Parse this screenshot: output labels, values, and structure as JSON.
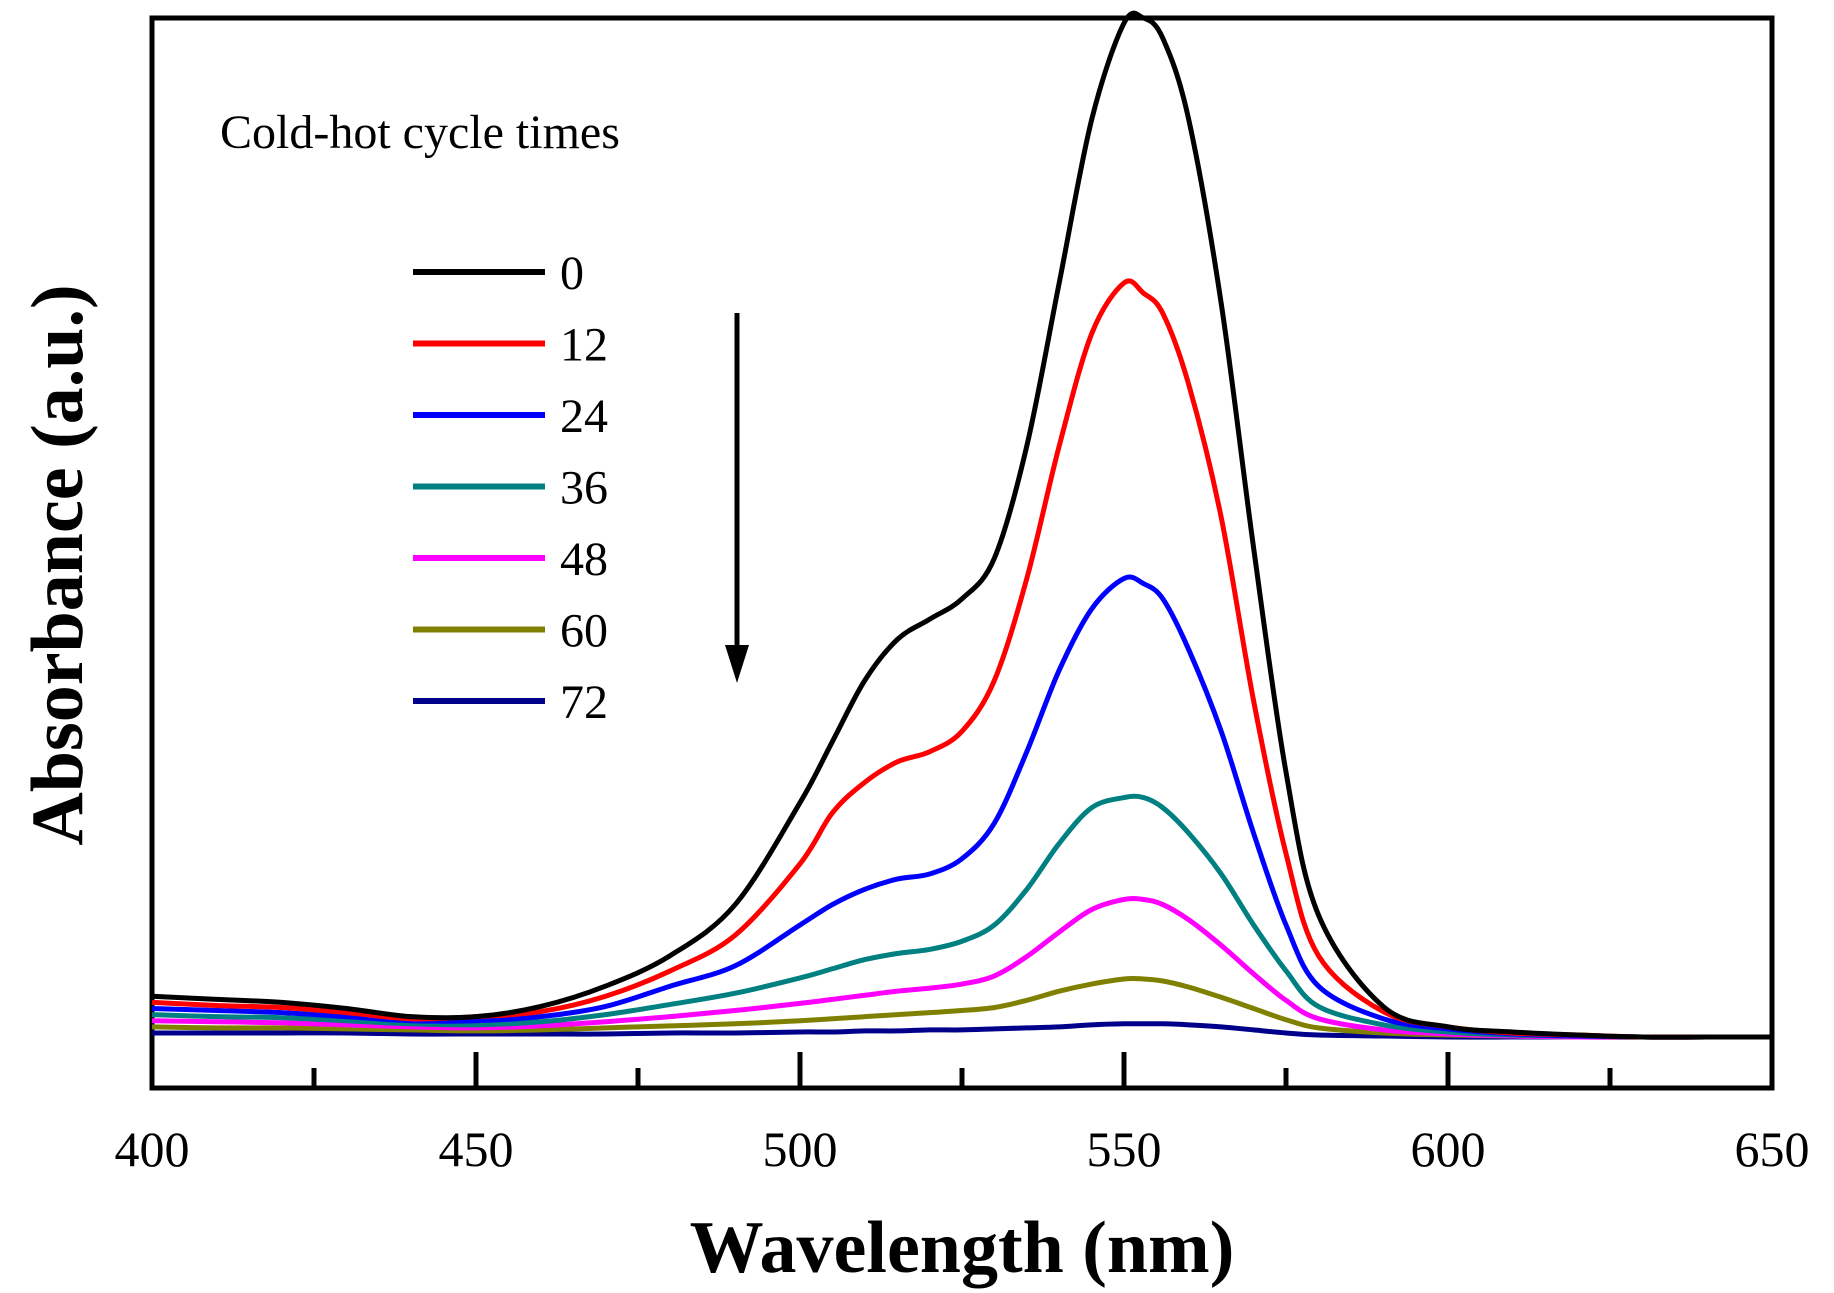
{
  "chart_data": {
    "type": "line",
    "xlabel": "Wavelength (nm)",
    "ylabel": "Absorbance (a.u.)",
    "xlim": [
      400,
      650
    ],
    "ylim": [
      -0.05,
      1.0
    ],
    "x_ticks": [
      400,
      450,
      500,
      550,
      600,
      650
    ],
    "x_tick_labels": [
      "400",
      "450",
      "500",
      "550",
      "600",
      "650"
    ],
    "legend": {
      "title": "Cold-hot cycle times",
      "position": "top-left"
    },
    "annotation": "downward arrow indicating decreasing absorbance with increasing cycle times",
    "x": [
      400,
      410,
      420,
      430,
      440,
      450,
      460,
      470,
      480,
      490,
      500,
      505,
      510,
      515,
      520,
      525,
      530,
      535,
      540,
      545,
      550,
      553,
      556,
      560,
      565,
      570,
      575,
      580,
      590,
      600,
      610,
      620,
      630,
      640,
      650
    ],
    "series": [
      {
        "name": "0",
        "color": "#000000",
        "values": [
          0.04,
          0.037,
          0.034,
          0.028,
          0.02,
          0.02,
          0.03,
          0.05,
          0.08,
          0.13,
          0.23,
          0.29,
          0.35,
          0.39,
          0.41,
          0.43,
          0.47,
          0.58,
          0.74,
          0.9,
          0.995,
          1.0,
          0.98,
          0.9,
          0.72,
          0.48,
          0.26,
          0.12,
          0.03,
          0.01,
          0.005,
          0.002,
          0.0,
          0.0,
          0.0
        ]
      },
      {
        "name": "12",
        "color": "#ff0000",
        "values": [
          0.034,
          0.031,
          0.029,
          0.024,
          0.018,
          0.02,
          0.025,
          0.04,
          0.065,
          0.1,
          0.17,
          0.22,
          0.25,
          0.27,
          0.28,
          0.3,
          0.35,
          0.45,
          0.58,
          0.69,
          0.74,
          0.73,
          0.71,
          0.64,
          0.51,
          0.33,
          0.18,
          0.08,
          0.025,
          0.01,
          0.004,
          0.002,
          0.0,
          0.0,
          0.0
        ]
      },
      {
        "name": "24",
        "color": "#0000ff",
        "values": [
          0.028,
          0.026,
          0.024,
          0.02,
          0.016,
          0.016,
          0.02,
          0.03,
          0.05,
          0.07,
          0.11,
          0.13,
          0.145,
          0.155,
          0.16,
          0.175,
          0.21,
          0.28,
          0.36,
          0.42,
          0.45,
          0.445,
          0.43,
          0.38,
          0.3,
          0.2,
          0.11,
          0.05,
          0.018,
          0.008,
          0.003,
          0.001,
          0.0,
          0.0,
          0.0
        ]
      },
      {
        "name": "36",
        "color": "#008080",
        "values": [
          0.022,
          0.02,
          0.019,
          0.016,
          0.013,
          0.012,
          0.015,
          0.022,
          0.032,
          0.043,
          0.058,
          0.067,
          0.076,
          0.082,
          0.086,
          0.094,
          0.11,
          0.145,
          0.19,
          0.225,
          0.235,
          0.235,
          0.225,
          0.2,
          0.16,
          0.11,
          0.065,
          0.03,
          0.012,
          0.005,
          0.002,
          0.001,
          0.0,
          0.0,
          0.0
        ]
      },
      {
        "name": "48",
        "color": "#ff00ff",
        "values": [
          0.016,
          0.015,
          0.014,
          0.012,
          0.01,
          0.009,
          0.011,
          0.015,
          0.02,
          0.026,
          0.033,
          0.037,
          0.041,
          0.045,
          0.048,
          0.052,
          0.06,
          0.079,
          0.103,
          0.125,
          0.135,
          0.135,
          0.13,
          0.115,
          0.09,
          0.062,
          0.036,
          0.018,
          0.007,
          0.003,
          0.001,
          0.0,
          0.0,
          0.0,
          0.0
        ]
      },
      {
        "name": "60",
        "color": "#808000",
        "values": [
          0.01,
          0.009,
          0.009,
          0.008,
          0.007,
          0.006,
          0.007,
          0.009,
          0.011,
          0.013,
          0.016,
          0.018,
          0.02,
          0.022,
          0.024,
          0.026,
          0.029,
          0.036,
          0.045,
          0.052,
          0.057,
          0.057,
          0.055,
          0.049,
          0.039,
          0.028,
          0.017,
          0.009,
          0.004,
          0.002,
          0.001,
          0.0,
          0.0,
          0.0,
          0.0
        ]
      },
      {
        "name": "72",
        "color": "#00008b",
        "values": [
          0.004,
          0.004,
          0.004,
          0.004,
          0.003,
          0.003,
          0.003,
          0.003,
          0.004,
          0.004,
          0.005,
          0.005,
          0.006,
          0.006,
          0.007,
          0.007,
          0.008,
          0.009,
          0.01,
          0.012,
          0.013,
          0.013,
          0.013,
          0.012,
          0.01,
          0.007,
          0.004,
          0.002,
          0.001,
          0.0,
          0.0,
          0.0,
          0.0,
          0.0,
          0.0
        ]
      }
    ]
  }
}
